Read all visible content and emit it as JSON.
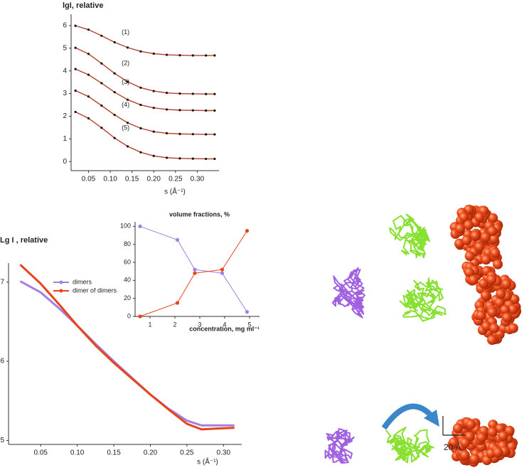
{
  "chart_data": [
    {
      "type": "line",
      "ylabel": "lgI, relative",
      "xlabel": "s (Å⁻¹)",
      "x": [
        0.02,
        0.05,
        0.08,
        0.11,
        0.14,
        0.17,
        0.2,
        0.23,
        0.26,
        0.29,
        0.32,
        0.34
      ],
      "series": [
        {
          "name": "(1)",
          "color": "#b5402a",
          "values": [
            5.99,
            5.82,
            5.55,
            5.26,
            5.03,
            4.86,
            4.76,
            4.71,
            4.69,
            4.68,
            4.68,
            4.68
          ]
        },
        {
          "name": "(2)",
          "color": "#b5402a",
          "values": [
            5.02,
            4.75,
            4.33,
            3.89,
            3.52,
            3.26,
            3.11,
            3.03,
            3.0,
            2.99,
            2.98,
            2.98
          ]
        },
        {
          "name": "(3)",
          "color": "#b5402a",
          "values": [
            4.08,
            3.83,
            3.46,
            3.06,
            2.73,
            2.5,
            2.37,
            2.3,
            2.27,
            2.26,
            2.25,
            2.25
          ]
        },
        {
          "name": "(4)",
          "color": "#b5402a",
          "values": [
            3.13,
            2.87,
            2.47,
            2.06,
            1.71,
            1.47,
            1.32,
            1.25,
            1.22,
            1.21,
            1.2,
            1.2
          ]
        },
        {
          "name": "(5)",
          "color": "#b5402a",
          "values": [
            2.19,
            1.91,
            1.49,
            1.04,
            0.67,
            0.41,
            0.25,
            0.17,
            0.14,
            0.13,
            0.12,
            0.12
          ]
        }
      ],
      "marker_color": "#111111",
      "xlim": [
        0.01,
        0.35
      ],
      "ylim": [
        -0.4,
        6.5
      ],
      "xticks": [
        0.05,
        {
          "value": 0.1,
          "label": "0.10"
        },
        0.15,
        {
          "value": 0.2,
          "label": "0.20"
        },
        0.25,
        {
          "value": 0.3,
          "label": "0.30"
        }
      ],
      "yticks": [
        0,
        1,
        2,
        3,
        4,
        5,
        6
      ]
    },
    {
      "type": "line",
      "ylabel": "Lg I , relative",
      "xlabel": "s (Å⁻¹)",
      "x": [
        0.022,
        0.05,
        0.075,
        0.1,
        0.125,
        0.15,
        0.175,
        0.2,
        0.225,
        0.25,
        0.27,
        0.29,
        0.315
      ],
      "series": [
        {
          "name": "dimers",
          "color": "#a47ee0",
          "values": [
            7.01,
            6.87,
            6.67,
            6.45,
            6.22,
            6.0,
            5.79,
            5.58,
            5.4,
            5.25,
            5.19,
            5.19,
            5.19
          ]
        },
        {
          "name": "dimer of dimers",
          "color": "#e8441c",
          "values": [
            7.22,
            6.98,
            6.72,
            6.45,
            6.2,
            5.98,
            5.78,
            5.58,
            5.39,
            5.21,
            5.14,
            5.15,
            5.16
          ]
        }
      ],
      "legend": "upper left",
      "xlim": [
        0.006,
        0.325
      ],
      "ylim": [
        4.95,
        7.24
      ],
      "xticks": [
        0.05,
        {
          "value": 0.1,
          "label": "0.10"
        },
        0.15,
        {
          "value": 0.2,
          "label": "0.20"
        },
        0.25,
        {
          "value": 0.3,
          "label": "0.30"
        }
      ],
      "yticks": [
        5,
        6,
        7
      ]
    },
    {
      "type": "errorbar",
      "title": "volume fractions, %",
      "xlabel": "concentration, mg ml⁻¹",
      "x": [
        0.6,
        2.1,
        2.8,
        3.9,
        4.9
      ],
      "series": [
        {
          "name": "dimers",
          "color": "#a47ee0",
          "values": [
            100,
            85,
            52,
            48,
            5
          ],
          "errors": [
            2,
            2,
            1,
            1.5,
            2
          ]
        },
        {
          "name": "dimer of dimers",
          "color": "#e8441c",
          "values": [
            0,
            15,
            48,
            52,
            95
          ],
          "errors": [
            1,
            2,
            1,
            2,
            2
          ]
        }
      ],
      "xlim": [
        0.4,
        5.4
      ],
      "ylim": [
        0,
        105
      ],
      "xticks": [
        1,
        2,
        3,
        4,
        5
      ],
      "yticks": [
        0,
        20,
        40,
        60,
        80,
        100
      ]
    }
  ],
  "figure": {
    "scale_bar": "20 Å"
  }
}
